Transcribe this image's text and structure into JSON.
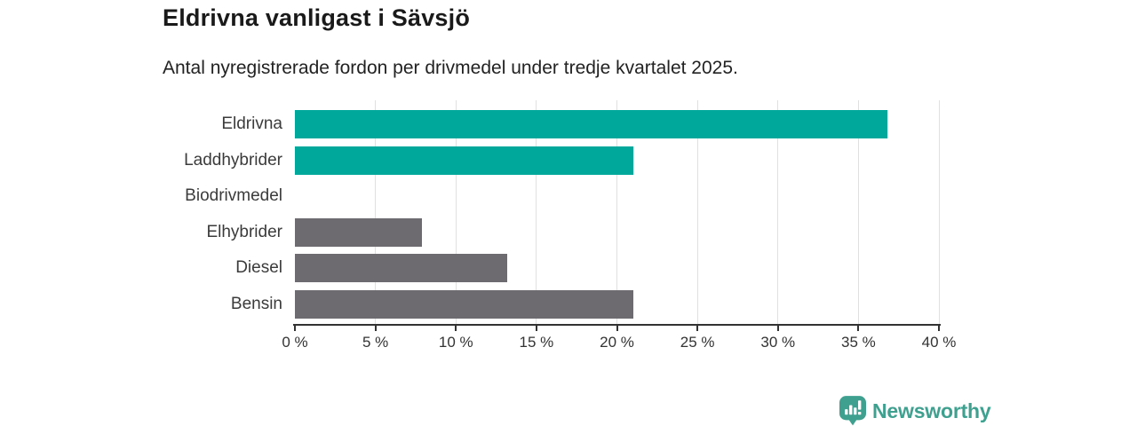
{
  "chart": {
    "title": "Eldrivna vanligast i Sävsjö",
    "subtitle": "Antal nyregistrerade fordon per drivmedel under tredje kvartalet 2025."
  },
  "chart_data": {
    "type": "bar",
    "orientation": "horizontal",
    "title": "Eldrivna vanligast i Sävsjö",
    "subtitle": "Antal nyregistrerade fordon per drivmedel under tredje kvartalet 2025.",
    "categories": [
      "Eldrivna",
      "Laddhybrider",
      "Biodrivmedel",
      "Elhybrider",
      "Diesel",
      "Bensin"
    ],
    "values": [
      36.8,
      21,
      0,
      7.9,
      13.2,
      21
    ],
    "unit": "%",
    "bar_colors": [
      "#00A79B",
      "#00A79B",
      "#6E6B70",
      "#6E6B70",
      "#6E6B70",
      "#6E6B70"
    ],
    "xlim": [
      0,
      40
    ],
    "x_ticks": [
      0,
      5,
      10,
      15,
      20,
      25,
      30,
      35,
      40
    ],
    "x_tick_labels": [
      "0 %",
      "5 %",
      "10 %",
      "15 %",
      "20 %",
      "25 %",
      "30 %",
      "35 %",
      "40 %"
    ],
    "grid": "vertical-only",
    "legend": "none"
  },
  "colors": {
    "highlight_bar": "#00A79B",
    "default_bar": "#6E6B70",
    "axis": "#333333",
    "gridline": "#E0E0E0",
    "background": "#FFFFFF"
  },
  "branding": {
    "logo_text": "Newsworthy",
    "logo_color": "#3FA08F"
  }
}
